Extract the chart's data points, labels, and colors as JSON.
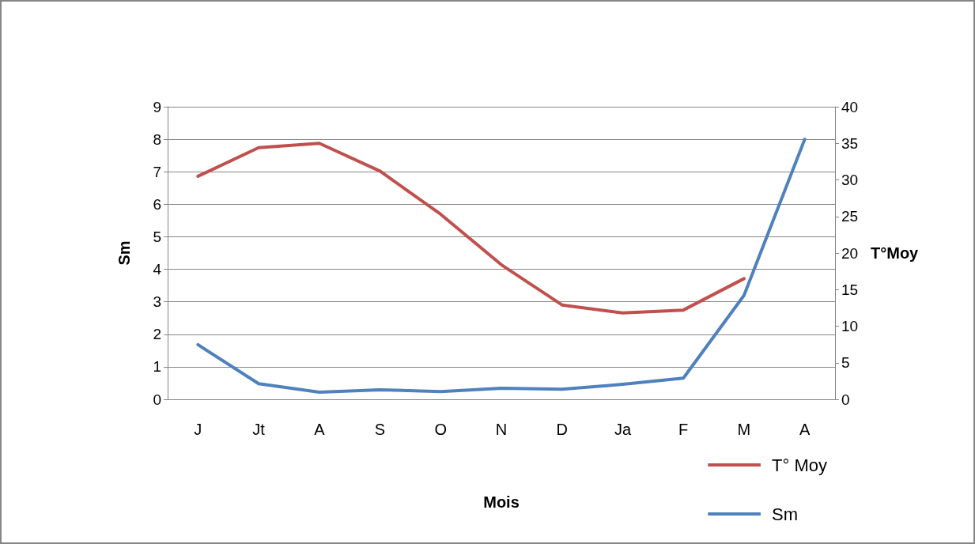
{
  "chart_data": {
    "type": "line",
    "xlabel": "Mois",
    "ylabel": "Sm",
    "y2label": "T°Moy",
    "categories": [
      "J",
      "Jt",
      "A",
      "S",
      "O",
      "N",
      "D",
      "Ja",
      "F",
      "M",
      "A"
    ],
    "series": [
      {
        "name": "T° Moy",
        "color": "#c0504d",
        "axis": "y2",
        "values": [
          30.5,
          34.4,
          35.0,
          31.2,
          25.3,
          18.4,
          12.9,
          11.8,
          12.2,
          16.5,
          null
        ]
      },
      {
        "name": "Sm",
        "color": "#4f81bd",
        "values": [
          1.68,
          0.48,
          0.22,
          0.29,
          0.24,
          0.34,
          0.31,
          0.46,
          0.65,
          3.2,
          8.0
        ]
      }
    ],
    "ylim": [
      0,
      9
    ],
    "yticks": [
      0,
      1,
      2,
      3,
      4,
      5,
      6,
      7,
      8,
      9
    ],
    "y2lim": [
      0,
      40
    ],
    "y2ticks": [
      0,
      5,
      10,
      15,
      20,
      25,
      30,
      35,
      40
    ],
    "grid": "y",
    "legend": "bottom right",
    "marker": "none",
    "line_style": "solid"
  }
}
